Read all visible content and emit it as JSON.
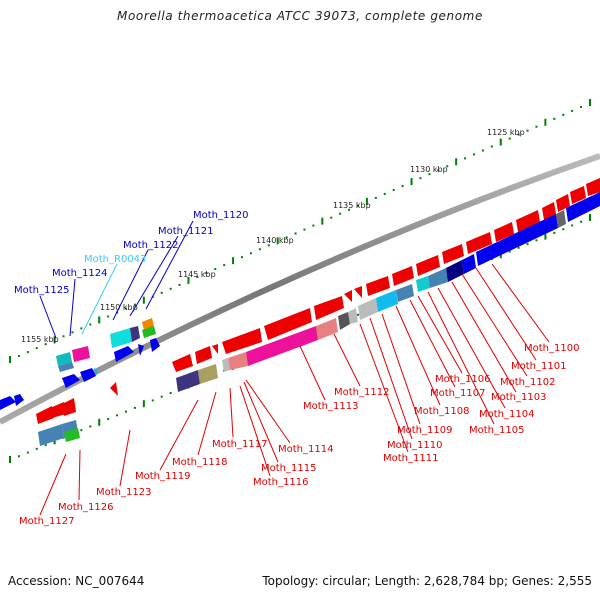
{
  "title": "Moorella thermoacetica ATCC 39073, complete genome",
  "footer": {
    "accession": "Accession: NC_007644",
    "summary": "Topology: circular; Length: 2,628,784 bp; Genes: 2,555"
  },
  "colors": {
    "backbone": "#808080",
    "forward_label": "#0000cc",
    "rna_label": "#33ccff",
    "reverse_label": "#e00000",
    "tick": "#008000"
  },
  "scale_ticks": [
    "1125 kbp",
    "1130 kbp",
    "1135 kbp",
    "1140 kbp",
    "1145 kbp",
    "1150 kbp",
    "1155 kbp"
  ],
  "labels_forward": [
    {
      "text": "Moth_1120",
      "kind": "cds"
    },
    {
      "text": "Moth_1121",
      "kind": "cds"
    },
    {
      "text": "Moth_1122",
      "kind": "cds"
    },
    {
      "text": "Moth_R0043",
      "kind": "rna"
    },
    {
      "text": "Moth_1124",
      "kind": "cds"
    },
    {
      "text": "Moth_1125",
      "kind": "cds"
    }
  ],
  "labels_reverse": [
    {
      "text": "Moth_1100"
    },
    {
      "text": "Moth_1101"
    },
    {
      "text": "Moth_1102"
    },
    {
      "text": "Moth_1103"
    },
    {
      "text": "Moth_1104"
    },
    {
      "text": "Moth_1105"
    },
    {
      "text": "Moth_1106"
    },
    {
      "text": "Moth_1107"
    },
    {
      "text": "Moth_1108"
    },
    {
      "text": "Moth_1109"
    },
    {
      "text": "Moth_1110"
    },
    {
      "text": "Moth_1111"
    },
    {
      "text": "Moth_1112"
    },
    {
      "text": "Moth_1113"
    },
    {
      "text": "Moth_1114"
    },
    {
      "text": "Moth_1115"
    },
    {
      "text": "Moth_1116"
    },
    {
      "text": "Moth_1117"
    },
    {
      "text": "Moth_1118"
    },
    {
      "text": "Moth_1119"
    },
    {
      "text": "Moth_1123"
    },
    {
      "text": "Moth_1126"
    },
    {
      "text": "Moth_1127"
    }
  ]
}
